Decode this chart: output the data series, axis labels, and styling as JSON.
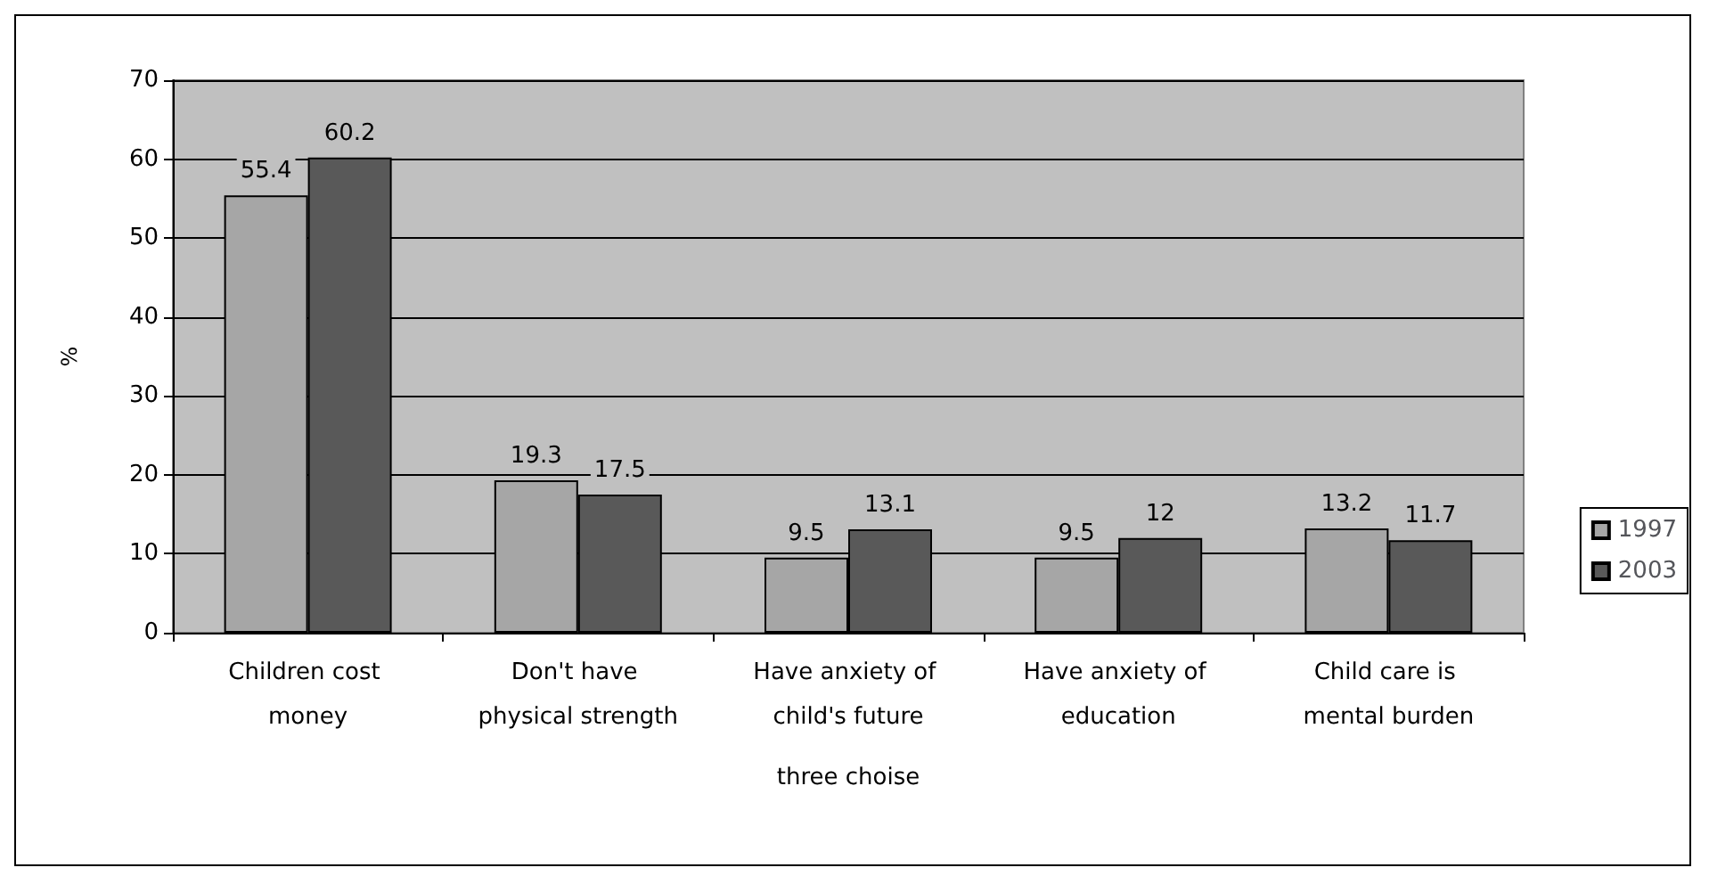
{
  "chart_data": {
    "type": "bar",
    "xlabel": "three choise",
    "ylabel": "%",
    "categories": [
      "Children cost money",
      "Don't have physical strength",
      "Have anxiety of child's future",
      "Have anxiety of education",
      "Child care is mental burden"
    ],
    "series": [
      {
        "name": "1997",
        "color": "#a6a6a6",
        "values": [
          55.4,
          19.3,
          9.5,
          9.5,
          13.2
        ]
      },
      {
        "name": "2003",
        "color": "#595959",
        "values": [
          60.2,
          17.5,
          13.1,
          12,
          11.7
        ]
      }
    ],
    "ylim": [
      0,
      70
    ],
    "yticks": [
      0,
      10,
      20,
      30,
      40,
      50,
      60,
      70
    ],
    "grid": "y",
    "legend": "right",
    "data_labels": true
  }
}
